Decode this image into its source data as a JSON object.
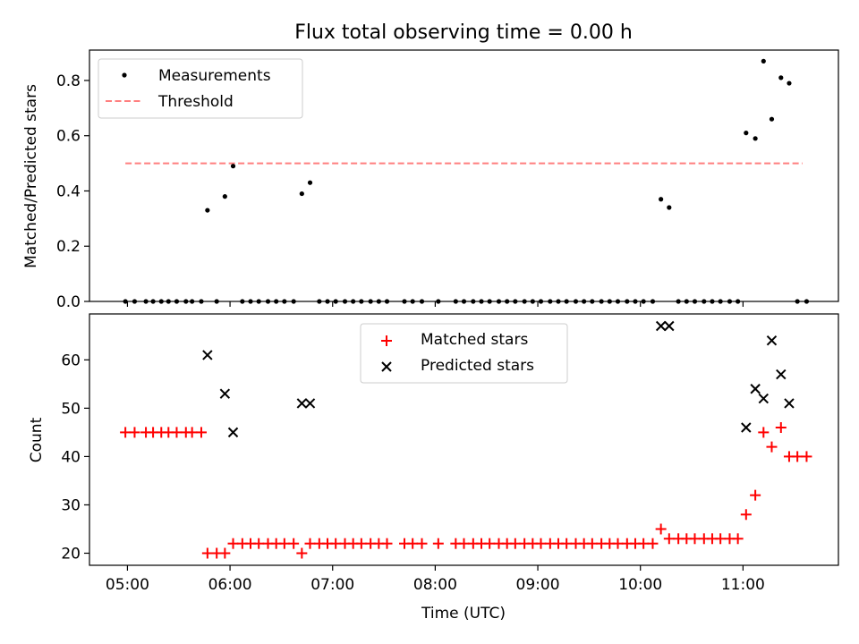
{
  "chart_data": [
    {
      "type": "scatter",
      "title": "Flux total observing time = 0.00 h",
      "xlabel": "",
      "ylabel": "Matched/Predicted stars",
      "xlim": [
        4.63,
        11.93
      ],
      "ylim": [
        0.0,
        0.91
      ],
      "yticks": [
        0.0,
        0.2,
        0.4,
        0.6,
        0.8
      ],
      "yticklabels": [
        "0.0",
        "0.2",
        "0.4",
        "0.6",
        "0.8"
      ],
      "legend": {
        "placement": "upper-left",
        "entries": [
          {
            "key": "measurements",
            "label": "Measurements"
          },
          {
            "key": "threshold",
            "label": "Threshold"
          }
        ]
      },
      "threshold": {
        "y": 0.5,
        "x_start": 4.98,
        "x_end": 11.58,
        "color": "#ff7f7f"
      },
      "series": [
        {
          "name": "Measurements",
          "marker": "dot",
          "color": "#000000",
          "x": [
            4.98,
            5.07,
            5.18,
            5.25,
            5.33,
            5.4,
            5.48,
            5.57,
            5.63,
            5.72,
            5.78,
            5.87,
            5.95,
            6.03,
            6.12,
            6.2,
            6.28,
            6.37,
            6.45,
            6.53,
            6.62,
            6.7,
            6.78,
            6.87,
            6.95,
            7.03,
            7.12,
            7.2,
            7.28,
            7.37,
            7.45,
            7.53,
            7.7,
            7.78,
            7.87,
            8.03,
            8.2,
            8.28,
            8.37,
            8.45,
            8.53,
            8.62,
            8.7,
            8.78,
            8.87,
            8.95,
            9.03,
            9.12,
            9.2,
            9.28,
            9.37,
            9.45,
            9.53,
            9.62,
            9.7,
            9.78,
            9.87,
            9.95,
            10.03,
            10.12,
            10.2,
            10.28,
            10.37,
            10.45,
            10.53,
            10.62,
            10.7,
            10.78,
            10.87,
            10.95,
            11.03,
            11.12,
            11.2,
            11.28,
            11.37,
            11.45,
            11.53,
            11.62
          ],
          "y": [
            0.0,
            0.0,
            0.0,
            0.0,
            0.0,
            0.0,
            0.0,
            0.0,
            0.0,
            0.0,
            0.33,
            0.0,
            0.38,
            0.49,
            0.0,
            0.0,
            0.0,
            0.0,
            0.0,
            0.0,
            0.0,
            0.39,
            0.43,
            0.0,
            0.0,
            0.0,
            0.0,
            0.0,
            0.0,
            0.0,
            0.0,
            0.0,
            0.0,
            0.0,
            0.0,
            0.0,
            0.0,
            0.0,
            0.0,
            0.0,
            0.0,
            0.0,
            0.0,
            0.0,
            0.0,
            0.0,
            0.0,
            0.0,
            0.0,
            0.0,
            0.0,
            0.0,
            0.0,
            0.0,
            0.0,
            0.0,
            0.0,
            0.0,
            0.0,
            0.0,
            0.37,
            0.34,
            0.0,
            0.0,
            0.0,
            0.0,
            0.0,
            0.0,
            0.0,
            0.0,
            0.61,
            0.59,
            0.87,
            0.66,
            0.81,
            0.79,
            0.0,
            0.0
          ]
        }
      ]
    },
    {
      "type": "scatter",
      "title": "",
      "xlabel": "Time (UTC)",
      "ylabel": "Count",
      "xlim": [
        4.63,
        11.93
      ],
      "ylim": [
        17.5,
        69.5
      ],
      "yticks": [
        20,
        30,
        40,
        50,
        60
      ],
      "yticklabels": [
        "20",
        "30",
        "40",
        "50",
        "60"
      ],
      "xticks": [
        5,
        6,
        7,
        8,
        9,
        10,
        11
      ],
      "xticklabels": [
        "05:00",
        "06:00",
        "07:00",
        "08:00",
        "09:00",
        "10:00",
        "11:00"
      ],
      "legend": {
        "placement": "upper-center",
        "entries": [
          {
            "key": "matched",
            "label": "Matched stars"
          },
          {
            "key": "predicted",
            "label": "Predicted stars"
          }
        ]
      },
      "series": [
        {
          "name": "Matched stars",
          "marker": "plus",
          "color": "#ff0000",
          "x": [
            4.98,
            5.07,
            5.18,
            5.25,
            5.33,
            5.4,
            5.48,
            5.57,
            5.63,
            5.72,
            5.78,
            5.87,
            5.95,
            6.03,
            6.12,
            6.2,
            6.28,
            6.37,
            6.45,
            6.53,
            6.62,
            6.7,
            6.78,
            6.87,
            6.95,
            7.03,
            7.12,
            7.2,
            7.28,
            7.37,
            7.45,
            7.53,
            7.7,
            7.78,
            7.87,
            8.03,
            8.2,
            8.28,
            8.37,
            8.45,
            8.53,
            8.62,
            8.7,
            8.78,
            8.87,
            8.95,
            9.03,
            9.12,
            9.2,
            9.28,
            9.37,
            9.45,
            9.53,
            9.62,
            9.7,
            9.78,
            9.87,
            9.95,
            10.03,
            10.12,
            10.2,
            10.28,
            10.37,
            10.45,
            10.53,
            10.62,
            10.7,
            10.78,
            10.87,
            10.95,
            11.03,
            11.12,
            11.2,
            11.28,
            11.37,
            11.45,
            11.53,
            11.62
          ],
          "y": [
            45,
            45,
            45,
            45,
            45,
            45,
            45,
            45,
            45,
            45,
            20,
            20,
            20,
            22,
            22,
            22,
            22,
            22,
            22,
            22,
            22,
            20,
            22,
            22,
            22,
            22,
            22,
            22,
            22,
            22,
            22,
            22,
            22,
            22,
            22,
            22,
            22,
            22,
            22,
            22,
            22,
            22,
            22,
            22,
            22,
            22,
            22,
            22,
            22,
            22,
            22,
            22,
            22,
            22,
            22,
            22,
            22,
            22,
            22,
            22,
            25,
            23,
            23,
            23,
            23,
            23,
            23,
            23,
            23,
            23,
            28,
            32,
            45,
            42,
            46,
            40,
            40,
            40
          ]
        },
        {
          "name": "Predicted stars",
          "marker": "x",
          "color": "#000000",
          "x": [
            5.78,
            5.95,
            6.03,
            6.7,
            6.78,
            10.2,
            10.28,
            11.03,
            11.12,
            11.2,
            11.28,
            11.37,
            11.45
          ],
          "y": [
            61,
            53,
            45,
            51,
            51,
            67,
            67,
            46,
            54,
            52,
            64,
            57,
            51
          ]
        }
      ]
    }
  ]
}
